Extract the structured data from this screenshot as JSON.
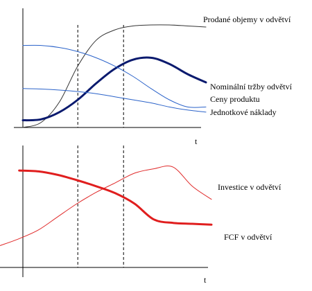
{
  "chart_data": [
    {
      "type": "line",
      "title": "",
      "xlabel": "t",
      "ylabel": "",
      "grid": false,
      "legend": "labels at right end of each curve",
      "x": [
        0,
        1,
        2,
        3,
        4,
        5,
        6,
        7,
        8,
        9,
        10
      ],
      "series": [
        {
          "name": "Prodané objemy v odvětví",
          "color": "#333333",
          "weight": "thin",
          "values": [
            0.0,
            0.05,
            0.25,
            0.6,
            0.85,
            0.95,
            0.99,
            1.0,
            1.0,
            0.99,
            0.98
          ]
        },
        {
          "name": "Nominální tržby odvětví",
          "color": "#0a1a6e",
          "weight": "bold",
          "values": [
            0.07,
            0.08,
            0.15,
            0.27,
            0.43,
            0.57,
            0.66,
            0.68,
            0.62,
            0.52,
            0.44
          ]
        },
        {
          "name": "Ceny produktu",
          "color": "#2a62c9",
          "weight": "thin",
          "values": [
            0.8,
            0.8,
            0.78,
            0.74,
            0.68,
            0.6,
            0.5,
            0.38,
            0.27,
            0.2,
            0.2
          ]
        },
        {
          "name": "Jednotkové náklady",
          "color": "#2a62c9",
          "weight": "thin",
          "values": [
            0.38,
            0.375,
            0.365,
            0.35,
            0.33,
            0.3,
            0.27,
            0.24,
            0.2,
            0.17,
            0.15
          ]
        }
      ],
      "vlines": [
        3,
        5.5
      ]
    },
    {
      "type": "line",
      "title": "",
      "xlabel": "t",
      "ylabel": "",
      "grid": false,
      "legend": "labels at right end of each curve",
      "x": [
        -1,
        0,
        1,
        2,
        3,
        4,
        5,
        6,
        7,
        8,
        9,
        10
      ],
      "series": [
        {
          "name": "Investice v odvětví",
          "color": "#e02a2a",
          "weight": "thin",
          "values": [
            0.02,
            0.1,
            0.2,
            0.35,
            0.5,
            0.63,
            0.74,
            0.85,
            0.9,
            0.92,
            0.7,
            0.55
          ]
        },
        {
          "name": "FCF v odvětví",
          "color": "#e01e1e",
          "weight": "bold",
          "values": [
            null,
            0.88,
            0.87,
            0.83,
            0.77,
            0.7,
            0.62,
            0.5,
            0.32,
            0.28,
            0.27,
            0.26
          ]
        }
      ],
      "vlines": [
        3,
        5.5
      ]
    }
  ]
}
